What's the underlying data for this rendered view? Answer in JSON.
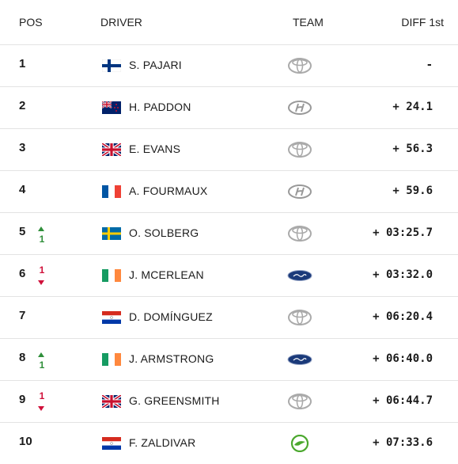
{
  "table": {
    "header": [
      "POS",
      "DRIVER",
      "TEAM",
      "DIFF 1st"
    ],
    "rows": [
      {
        "pos": "1",
        "driver": "S. PAJARI",
        "diff": "-"
      },
      {
        "pos": "2",
        "driver": "H. PADDON",
        "diff": "+ 24.1"
      },
      {
        "pos": "3",
        "driver": "E. EVANS",
        "diff": "+ 56.3"
      },
      {
        "pos": "4",
        "driver": "A. FOURMAUX",
        "diff": "+ 59.6"
      },
      {
        "pos": "5",
        "change": {
          "text": "1",
          "direction": "up"
        },
        "driver": "O. SOLBERG",
        "diff": "+ 03:25.7"
      },
      {
        "pos": "6",
        "change": {
          "text": "1",
          "direction": "down"
        },
        "driver": "J. MCERLEAN",
        "diff": "+ 03:32.0"
      },
      {
        "pos": "7",
        "driver": "D. DOMÍNGUEZ",
        "diff": "+ 06:20.4"
      },
      {
        "pos": "8",
        "change": {
          "text": "1",
          "direction": "up"
        },
        "driver": "J. ARMSTRONG",
        "diff": "+ 06:40.0"
      },
      {
        "pos": "9",
        "change": {
          "text": "1",
          "direction": "down"
        },
        "driver": "G. GREENSMITH",
        "diff": "+ 06:44.7"
      },
      {
        "pos": "10",
        "driver": "F. ZALDIVAR",
        "diff": "+ 07:33.6"
      }
    ]
  }
}
